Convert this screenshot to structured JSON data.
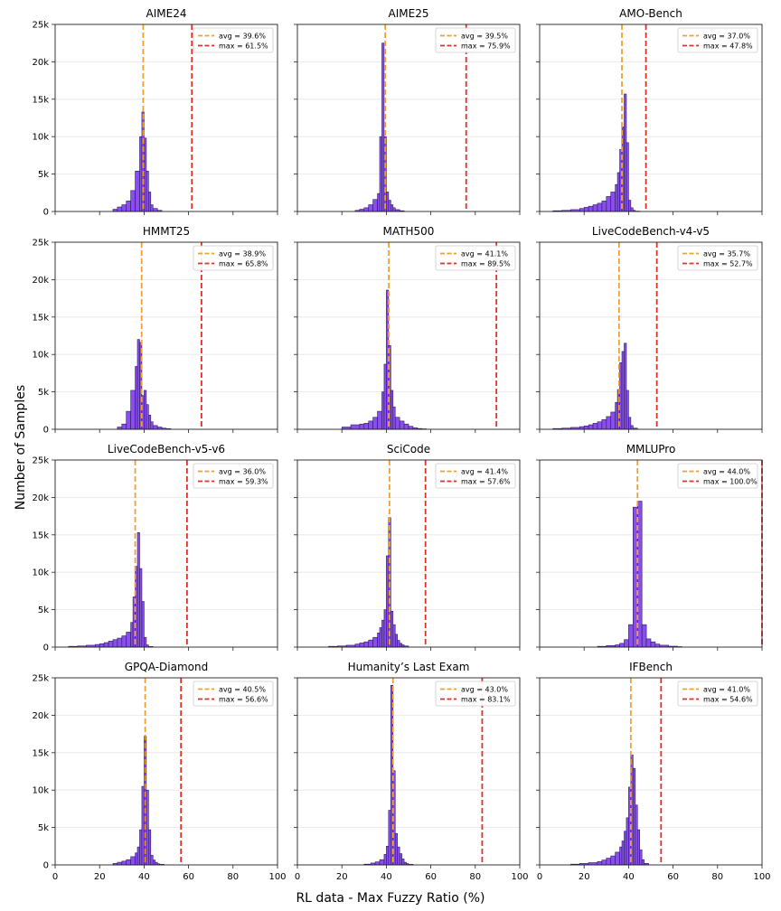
{
  "figure": {
    "xlabel": "RL data - Max Fuzzy Ratio (%)",
    "ylabel": "Number of Samples",
    "x_ticks": [
      "0",
      "20",
      "40",
      "60",
      "80",
      "100"
    ],
    "y_ticks": [
      "0",
      "5k",
      "10k",
      "15k",
      "20k",
      "25k"
    ],
    "colors": {
      "bar_fill": "#8a4ef0",
      "bar_edge": "#2b1a5a",
      "avg_line": "#f0a030",
      "max_line": "#e0302a",
      "grid": "#e6e6e6"
    }
  },
  "chart_data": [
    {
      "type": "bar",
      "title": "AIME24",
      "avg_label": "avg = 39.6%",
      "max_label": "max = 61.5%",
      "avg": 39.6,
      "max": 61.5,
      "xlim": [
        0,
        100
      ],
      "ylim": [
        0,
        25000
      ],
      "bin_starts": [
        26,
        28,
        30,
        32,
        34,
        36,
        38,
        39,
        40,
        41,
        42,
        43,
        44,
        46
      ],
      "values": [
        300,
        600,
        900,
        1400,
        2800,
        5400,
        10000,
        13300,
        9800,
        5400,
        2600,
        900,
        400,
        150
      ]
    },
    {
      "type": "bar",
      "title": "AIME25",
      "avg_label": "avg = 39.5%",
      "max_label": "max = 75.9%",
      "avg": 39.5,
      "max": 75.9,
      "xlim": [
        0,
        100
      ],
      "ylim": [
        0,
        25000
      ],
      "bin_starts": [
        26,
        28,
        30,
        32,
        34,
        36,
        37,
        38,
        39,
        40,
        41,
        42,
        43,
        44,
        46
      ],
      "values": [
        150,
        300,
        500,
        900,
        1600,
        2400,
        10000,
        22500,
        10000,
        2600,
        1500,
        900,
        500,
        250,
        100
      ]
    },
    {
      "type": "bar",
      "title": "AMO-Bench",
      "avg_label": "avg = 37.0%",
      "max_label": "max = 47.8%",
      "avg": 37.0,
      "max": 47.8,
      "xlim": [
        0,
        100
      ],
      "ylim": [
        0,
        25000
      ],
      "bin_starts": [
        6,
        10,
        14,
        18,
        20,
        22,
        24,
        26,
        28,
        30,
        32,
        34,
        35,
        36,
        37,
        38,
        39,
        40,
        41,
        42,
        43
      ],
      "values": [
        100,
        150,
        250,
        400,
        550,
        700,
        900,
        1100,
        1400,
        2000,
        2600,
        3600,
        5200,
        8300,
        11300,
        15700,
        9200,
        1500,
        500,
        150,
        50
      ]
    },
    {
      "type": "bar",
      "title": "HMMT25",
      "avg_label": "avg = 38.9%",
      "max_label": "max = 65.8%",
      "avg": 38.9,
      "max": 65.8,
      "xlim": [
        0,
        100
      ],
      "ylim": [
        0,
        25000
      ],
      "bin_starts": [
        28,
        30,
        32,
        34,
        36,
        37,
        38,
        39,
        40,
        41,
        42,
        43,
        44,
        46,
        48,
        50
      ],
      "values": [
        300,
        700,
        2400,
        5200,
        8400,
        12000,
        11600,
        4500,
        5200,
        3300,
        1900,
        1000,
        500,
        300,
        150,
        80
      ]
    },
    {
      "type": "bar",
      "title": "MATH500",
      "avg_label": "avg = 41.1%",
      "max_label": "max = 89.5%",
      "avg": 41.1,
      "max": 89.5,
      "xlim": [
        0,
        100
      ],
      "ylim": [
        0,
        25000
      ],
      "bin_starts": [
        20,
        24,
        28,
        30,
        32,
        34,
        36,
        38,
        39,
        40,
        41,
        42,
        43,
        44,
        46,
        48,
        50,
        52,
        54,
        56
      ],
      "values": [
        300,
        600,
        700,
        800,
        1100,
        1600,
        2400,
        5000,
        8700,
        18600,
        11200,
        5200,
        3000,
        1600,
        1100,
        700,
        400,
        200,
        100,
        60
      ]
    },
    {
      "type": "bar",
      "title": "LiveCodeBench-v4-v5",
      "avg_label": "avg = 35.7%",
      "max_label": "max = 52.7%",
      "avg": 35.7,
      "max": 52.7,
      "xlim": [
        0,
        100
      ],
      "ylim": [
        0,
        25000
      ],
      "bin_starts": [
        6,
        10,
        14,
        18,
        20,
        22,
        24,
        26,
        28,
        30,
        32,
        34,
        35,
        36,
        37,
        38,
        39,
        40,
        41,
        42
      ],
      "values": [
        100,
        150,
        250,
        350,
        450,
        600,
        800,
        1000,
        1300,
        1700,
        2300,
        3600,
        5300,
        8900,
        10400,
        11500,
        5200,
        1600,
        500,
        150
      ]
    },
    {
      "type": "bar",
      "title": "LiveCodeBench-v5-v6",
      "avg_label": "avg = 36.0%",
      "max_label": "max = 59.3%",
      "avg": 36.0,
      "max": 59.3,
      "xlim": [
        0,
        100
      ],
      "ylim": [
        0,
        25000
      ],
      "bin_starts": [
        6,
        10,
        14,
        18,
        20,
        22,
        24,
        26,
        28,
        30,
        32,
        34,
        35,
        36,
        37,
        38,
        39,
        40,
        41,
        42
      ],
      "values": [
        100,
        150,
        250,
        350,
        450,
        600,
        800,
        1000,
        1200,
        1500,
        2000,
        3300,
        6700,
        10800,
        15300,
        10500,
        6100,
        1300,
        300,
        80
      ]
    },
    {
      "type": "bar",
      "title": "SciCode",
      "avg_label": "avg = 41.4%",
      "max_label": "max = 57.6%",
      "avg": 41.4,
      "max": 57.6,
      "xlim": [
        0,
        100
      ],
      "ylim": [
        0,
        25000
      ],
      "bin_starts": [
        14,
        18,
        22,
        26,
        28,
        30,
        32,
        34,
        36,
        37,
        38,
        39,
        40,
        41,
        42,
        43,
        44,
        45,
        46,
        47,
        48
      ],
      "values": [
        100,
        150,
        250,
        400,
        550,
        700,
        950,
        1300,
        1900,
        2600,
        3600,
        5000,
        12200,
        17300,
        4800,
        3000,
        1700,
        900,
        500,
        300,
        150
      ]
    },
    {
      "type": "bar",
      "title": "MMLUPro",
      "avg_label": "avg = 44.0%",
      "max_label": "max = 100.0%",
      "avg": 44.0,
      "max": 100.0,
      "xlim": [
        0,
        100
      ],
      "ylim": [
        0,
        25000
      ],
      "bin_starts": [
        26,
        30,
        34,
        36,
        38,
        40,
        42,
        44,
        46,
        48,
        50,
        52,
        54,
        58,
        62
      ],
      "values": [
        100,
        200,
        300,
        500,
        1000,
        3000,
        18700,
        19500,
        3000,
        1100,
        700,
        400,
        250,
        120,
        60
      ]
    },
    {
      "type": "bar",
      "title": "GPQA-Diamond",
      "avg_label": "avg = 40.5%",
      "max_label": "max = 56.6%",
      "avg": 40.5,
      "max": 56.6,
      "xlim": [
        0,
        100
      ],
      "ylim": [
        0,
        25000
      ],
      "bin_starts": [
        26,
        28,
        30,
        32,
        34,
        36,
        37,
        38,
        39,
        40,
        41,
        42,
        43,
        44,
        45,
        46,
        47
      ],
      "values": [
        200,
        350,
        500,
        700,
        1100,
        1600,
        2400,
        4700,
        10500,
        17200,
        10000,
        4700,
        1300,
        650,
        350,
        150,
        80
      ]
    },
    {
      "type": "bar",
      "title": "Humanity’s Last Exam",
      "avg_label": "avg = 43.0%",
      "max_label": "max = 83.1%",
      "avg": 43.0,
      "max": 83.1,
      "xlim": [
        0,
        100
      ],
      "ylim": [
        0,
        25000
      ],
      "bin_starts": [
        30,
        33,
        35,
        37,
        39,
        40,
        41,
        42,
        43,
        44,
        45,
        46,
        47,
        48,
        49,
        50
      ],
      "values": [
        100,
        250,
        400,
        700,
        1400,
        2500,
        7300,
        24000,
        12600,
        4200,
        2400,
        1500,
        800,
        350,
        180,
        80
      ]
    },
    {
      "type": "bar",
      "title": "IFBench",
      "avg_label": "avg = 41.0%",
      "max_label": "max = 54.6%",
      "avg": 41.0,
      "max": 54.6,
      "xlim": [
        0,
        100
      ],
      "ylim": [
        0,
        25000
      ],
      "bin_starts": [
        14,
        18,
        22,
        26,
        28,
        30,
        32,
        34,
        36,
        37,
        38,
        39,
        40,
        41,
        42,
        43,
        44,
        45,
        46,
        47
      ],
      "values": [
        100,
        200,
        300,
        450,
        650,
        900,
        1200,
        1700,
        2400,
        3200,
        4500,
        6300,
        10400,
        14700,
        12900,
        8000,
        4700,
        2000,
        700,
        200
      ]
    }
  ]
}
